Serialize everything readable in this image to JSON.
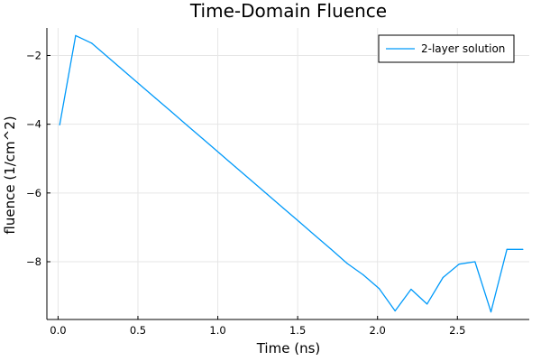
{
  "chart_data": {
    "type": "line",
    "title": "Time-Domain Fluence",
    "xlabel": "Time (ns)",
    "ylabel": "fluence (1/cm^2)",
    "xlim": [
      -0.07,
      2.95
    ],
    "ylim": [
      -9.68,
      -1.2
    ],
    "xticks": [
      0.0,
      0.5,
      1.0,
      1.5,
      2.0,
      2.5
    ],
    "xtick_labels": [
      "0.0",
      "0.5",
      "1.0",
      "1.5",
      "2.0",
      "2.5"
    ],
    "yticks": [
      -2,
      -4,
      -6,
      -8
    ],
    "ytick_labels": [
      "−2",
      "−4",
      "−6",
      "−8"
    ],
    "grid": true,
    "legend_position": "top-right",
    "series": [
      {
        "name": "2-layer solution",
        "color": "#009AFA",
        "x": [
          0.01,
          0.11,
          0.21,
          0.31,
          0.41,
          0.51,
          0.61,
          0.71,
          0.81,
          0.91,
          1.01,
          1.11,
          1.21,
          1.31,
          1.41,
          1.51,
          1.61,
          1.71,
          1.81,
          1.91,
          2.01,
          2.11,
          2.21,
          2.31,
          2.41,
          2.51,
          2.61,
          2.71,
          2.81,
          2.91
        ],
        "y": [
          -4.02,
          -1.42,
          -1.64,
          -2.04,
          -2.44,
          -2.84,
          -3.24,
          -3.64,
          -4.04,
          -4.44,
          -4.84,
          -5.24,
          -5.64,
          -6.04,
          -6.44,
          -6.84,
          -7.24,
          -7.64,
          -8.05,
          -8.38,
          -8.78,
          -9.43,
          -8.8,
          -9.23,
          -8.46,
          -8.07,
          -8.0,
          -9.46,
          -7.64,
          -7.64
        ]
      }
    ]
  }
}
